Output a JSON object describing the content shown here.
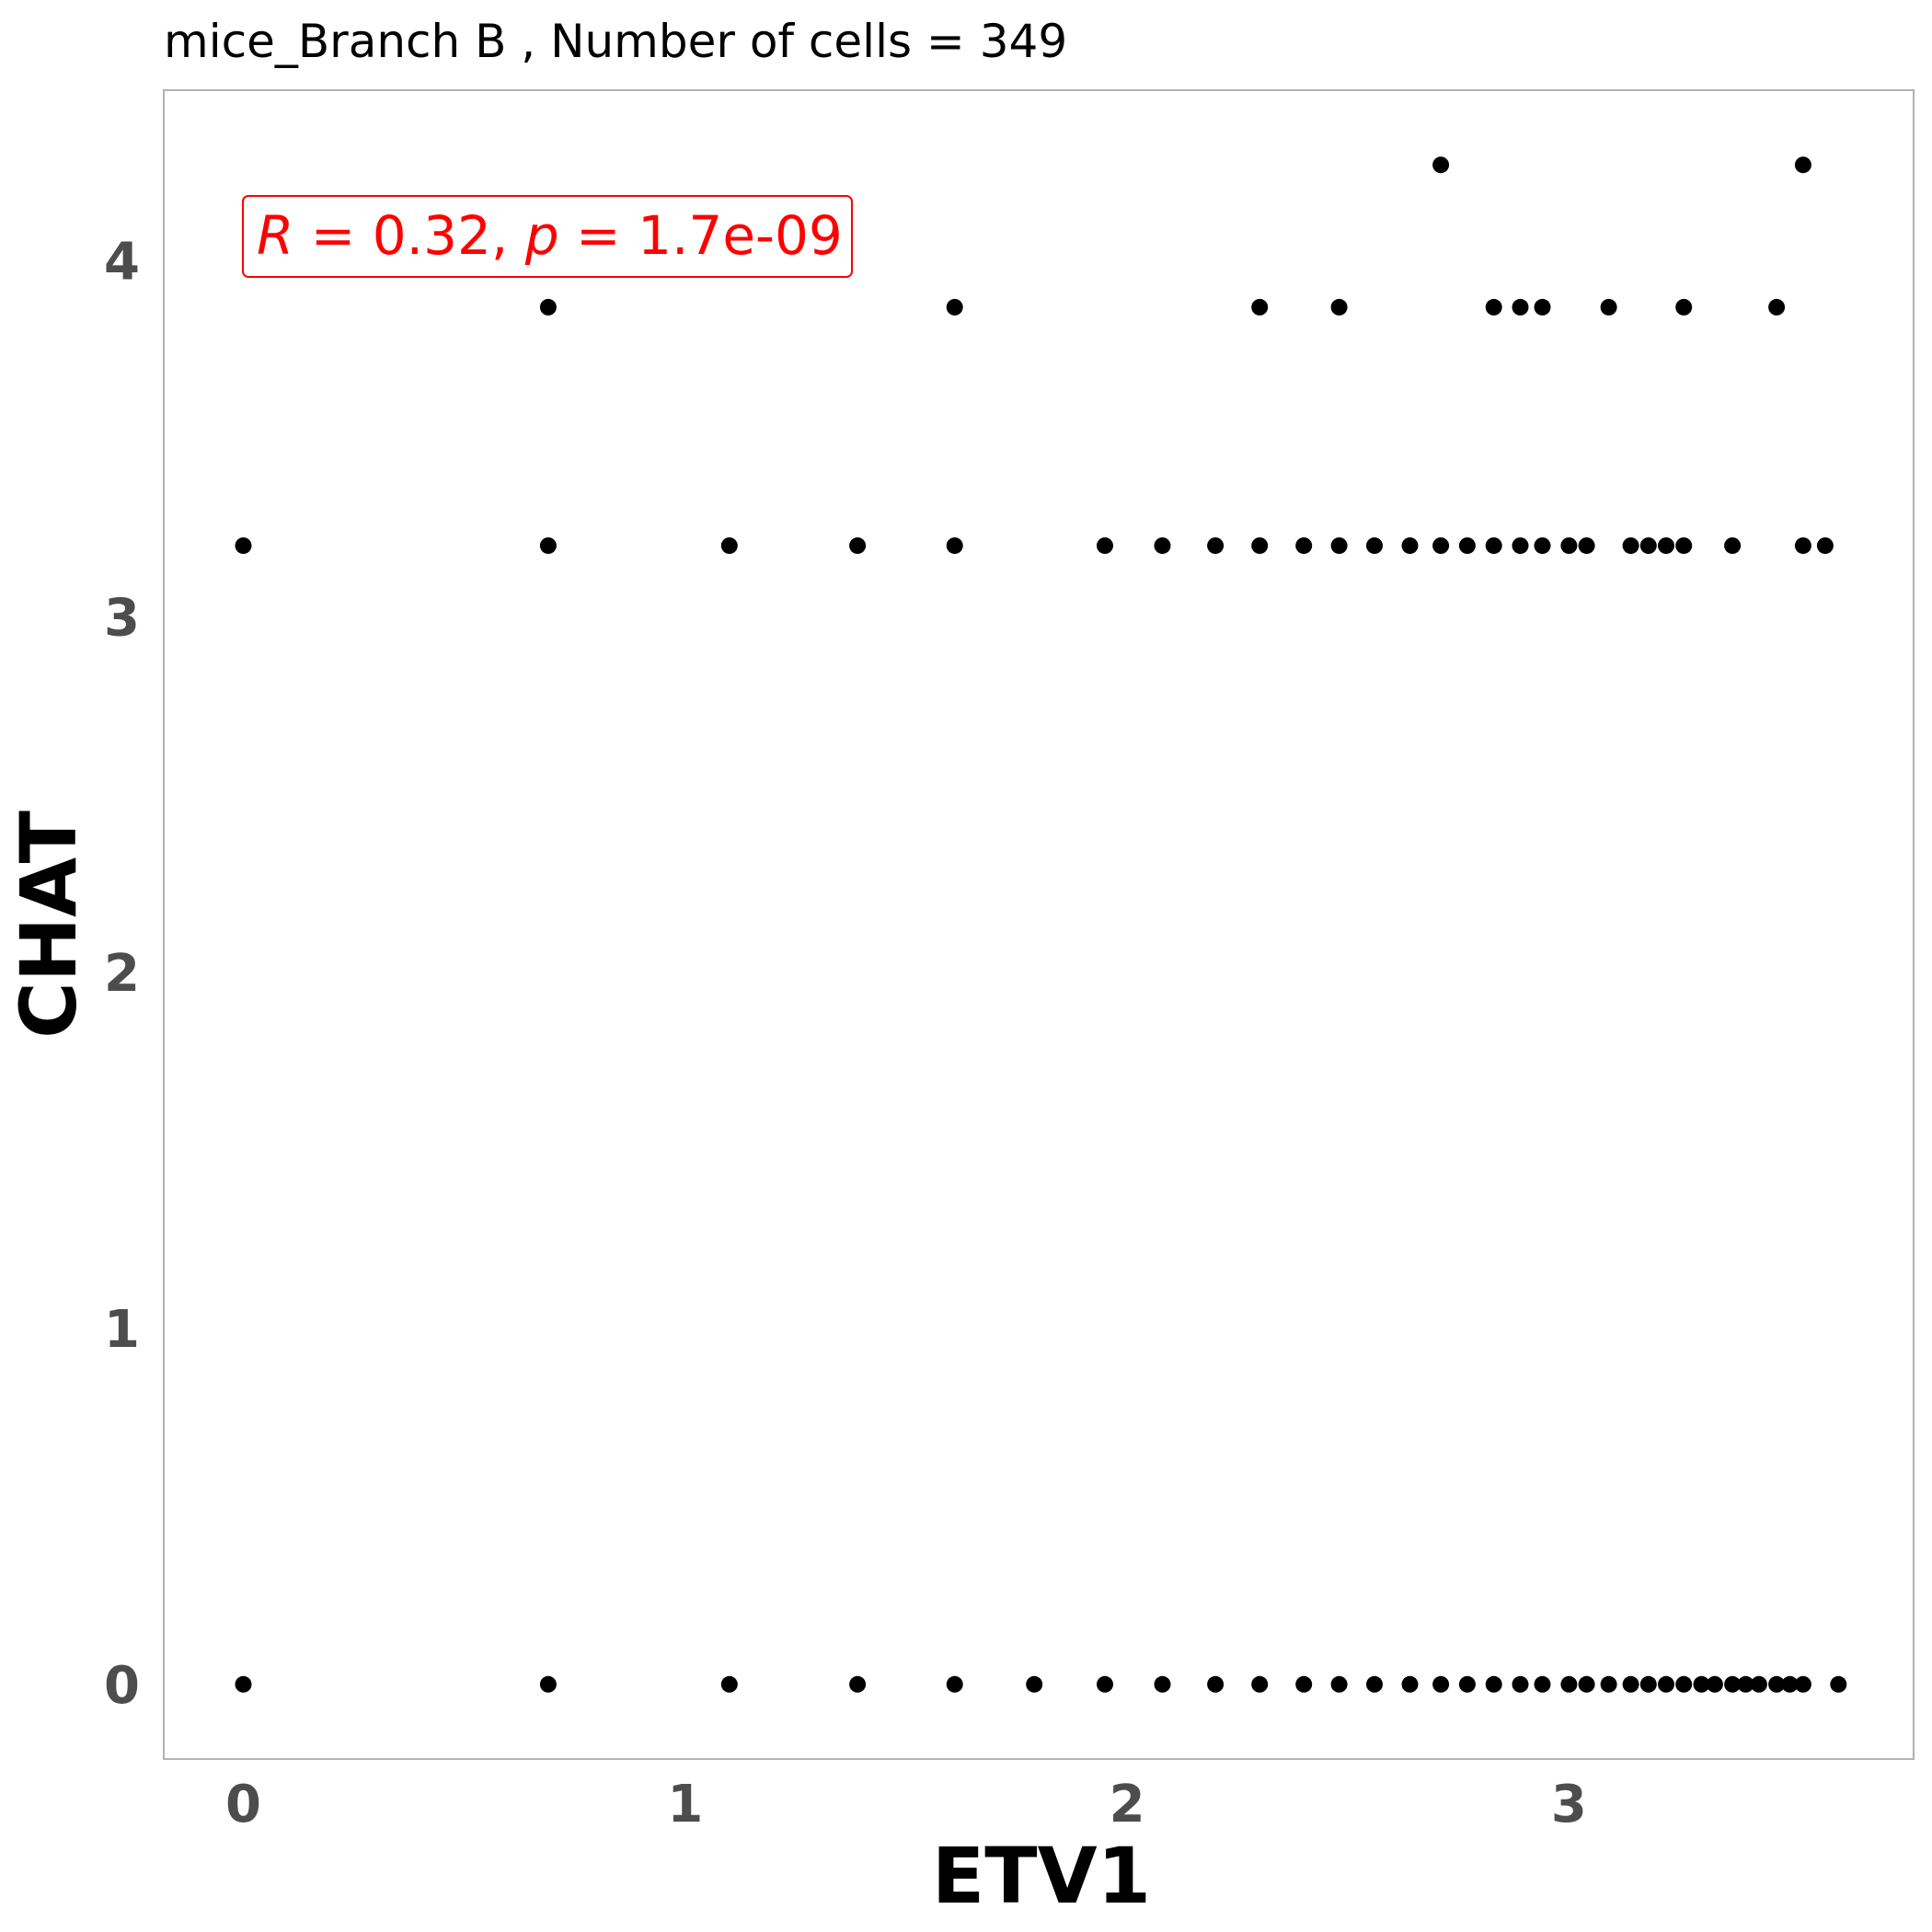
{
  "chart_data": {
    "type": "scatter",
    "title": "mice_Branch B , Number of cells =  349",
    "xlabel": "ETV1",
    "ylabel": "CHAT",
    "xlim": [
      -0.18,
      3.78
    ],
    "ylim": [
      -0.21,
      4.48
    ],
    "xticks": [
      0,
      1,
      2,
      3
    ],
    "yticks": [
      0,
      1,
      2,
      3,
      4
    ],
    "grid": false,
    "annotation": {
      "r_symbol": "R",
      "r_text": " = 0.32, ",
      "p_symbol": "p",
      "p_text": " = 1.7e-09",
      "color": "#ff0000"
    },
    "point_color": "#000000",
    "frame_color": "#b3b3b3",
    "points": {
      "y0": {
        "y": 0,
        "x": [
          0,
          0.69,
          1.1,
          1.39,
          1.61,
          1.79,
          1.95,
          2.08,
          2.2,
          2.3,
          2.4,
          2.48,
          2.56,
          2.64,
          2.71,
          2.77,
          2.83,
          2.89,
          2.94,
          3.0,
          3.04,
          3.09,
          3.14,
          3.18,
          3.22,
          3.26,
          3.3,
          3.33,
          3.37,
          3.4,
          3.43,
          3.47,
          3.5,
          3.53,
          3.61
        ]
      },
      "y32": {
        "y": 3.2,
        "x": [
          0,
          0.69,
          1.1,
          1.39,
          1.61,
          1.95,
          2.08,
          2.2,
          2.3,
          2.4,
          2.48,
          2.56,
          2.64,
          2.71,
          2.77,
          2.83,
          2.89,
          2.94,
          3.0,
          3.04,
          3.14,
          3.18,
          3.22,
          3.26,
          3.37,
          3.53,
          3.58
        ]
      },
      "y39": {
        "y": 3.87,
        "x": [
          0.69,
          1.61,
          2.3,
          2.48,
          2.83,
          2.89,
          2.94,
          3.09,
          3.26,
          3.47
        ]
      },
      "y43": {
        "y": 4.27,
        "x": [
          2.71,
          3.53
        ]
      }
    }
  }
}
